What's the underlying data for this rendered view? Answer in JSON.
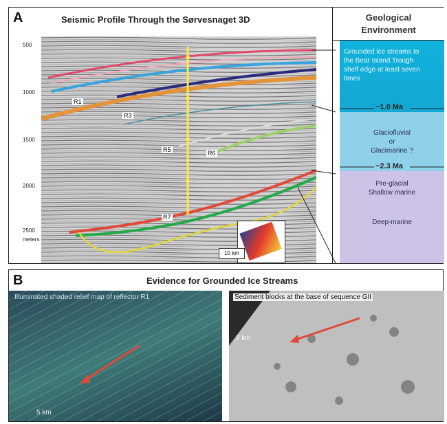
{
  "panel_a": {
    "letter": "A",
    "title": "Seismic Profile Through the Sørvesnaget 3D",
    "depth_ticks": [
      "500",
      "1000",
      "1500",
      "2000",
      "2500"
    ],
    "depth_unit": "meters",
    "reflector_labels": [
      "R1",
      "R3",
      "R5",
      "R6",
      "R7"
    ],
    "scale_bar": "10 km"
  },
  "environment": {
    "header": [
      "Geological",
      "Environment"
    ],
    "ice_text": "Grounded ice streams to the Bear Island Trough shelf edge at least seven times",
    "age_1": "~1.0 Ma",
    "glacio_text": [
      "Glaciofluvial",
      "or",
      "Glacimarine ?"
    ],
    "age_2": "~2.3 Ma",
    "pre_text": [
      "Pre-glacial",
      "Shallow marine"
    ],
    "deep_text": "Deep-marine",
    "colors": {
      "ice": "#12aed9",
      "glacio": "#8fd1ea",
      "pre": "#cdc3e6"
    }
  },
  "panel_b": {
    "letter": "B",
    "title": "Evidence for Grounded Ice Streams",
    "left_caption": "Illuminated shaded relief map of reflector R1",
    "left_scale": "5 km",
    "right_caption": "Sediment blocks at the base of sequence GII",
    "right_scale": "2 km"
  }
}
